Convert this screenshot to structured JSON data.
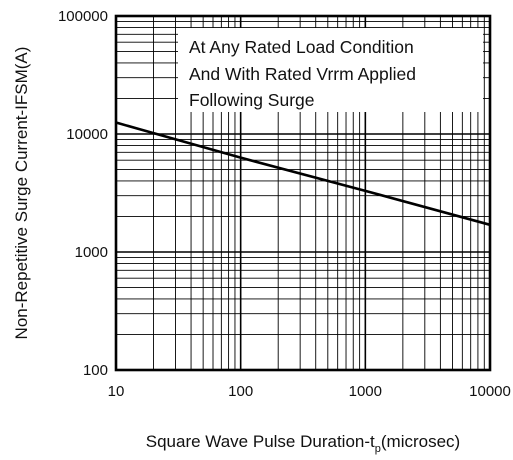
{
  "chart_data": {
    "type": "line",
    "x_scale": "log",
    "y_scale": "log",
    "xlim": [
      10,
      10000
    ],
    "ylim": [
      100,
      100000
    ],
    "grid": true,
    "x_ticks": [
      "10",
      "100",
      "1000",
      "10000"
    ],
    "y_ticks": [
      "100000",
      "10000",
      "1000",
      "100"
    ],
    "ylabel": "Non-Repetitive Surge Current-IFSM(A)",
    "xlabel": {
      "main": "Square Wave Pulse Duration-t",
      "subscript": "p",
      "suffix": "(microsec)"
    },
    "annotation": [
      "At Any Rated Load Condition",
      "And With Rated Vrrm Applied",
      "Following Surge"
    ],
    "series": [
      {
        "x": [
          10,
          100,
          1000,
          10000
        ],
        "y": [
          12500,
          6300,
          3300,
          1700
        ]
      }
    ]
  }
}
